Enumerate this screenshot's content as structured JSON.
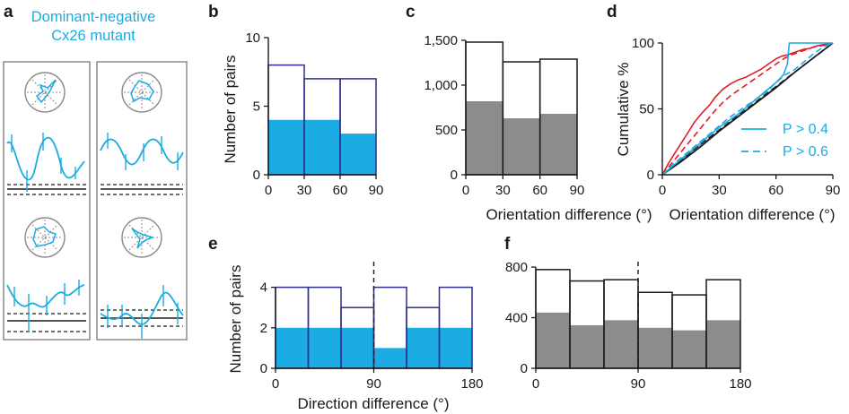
{
  "colors": {
    "cyan": "#1aace3",
    "navy": "#2e2e8f",
    "gray": "#8c8c8c",
    "red": "#e21d24",
    "black": "#1a1a1a"
  },
  "panel_a": {
    "label": "a",
    "title_line1": "Dominant-negative",
    "title_line2": "Cx26 mutant",
    "icons": [
      "polar-plot-icon",
      "tuning-curve-icon"
    ]
  },
  "chart_data": [
    {
      "id": "b",
      "panel_label": "b",
      "type": "bar",
      "xlabel": "",
      "ylabel": "Number of pairs",
      "bin_edges": [
        0,
        30,
        60,
        90
      ],
      "xticks": [
        "0",
        "30",
        "60",
        "90"
      ],
      "ylim": [
        0,
        10
      ],
      "yticks": [
        "0",
        "5",
        "10"
      ],
      "series": [
        {
          "values": [
            8,
            7,
            7
          ]
        },
        {
          "values": [
            4,
            4,
            3
          ]
        }
      ]
    },
    {
      "id": "c",
      "panel_label": "c",
      "type": "bar",
      "xlabel": "Orientation difference (°)",
      "ylabel": "",
      "bin_edges": [
        0,
        30,
        60,
        90
      ],
      "xticks": [
        "0",
        "30",
        "60",
        "90"
      ],
      "ylim": [
        0,
        1500
      ],
      "yticks": [
        "0",
        "500",
        "1,000",
        "1,500"
      ],
      "series": [
        {
          "values": [
            1480,
            1260,
            1290
          ]
        },
        {
          "values": [
            820,
            630,
            680
          ]
        }
      ]
    },
    {
      "id": "d",
      "panel_label": "d",
      "type": "line",
      "xlabel": "Orientation difference (°)",
      "ylabel": "Cumulative %",
      "xlim": [
        0,
        90
      ],
      "ylim": [
        0,
        100
      ],
      "xticks": [
        "0",
        "30",
        "60",
        "90"
      ],
      "yticks": [
        "0",
        "50",
        "100"
      ],
      "legend_position": "bottom-right",
      "legend": [
        {
          "label": "P > 0.4",
          "dash": "solid"
        },
        {
          "label": "P > 0.6",
          "dash": "dashed"
        }
      ],
      "series": [
        {
          "color": "#e21d24",
          "dash": "solid",
          "x": [
            0,
            3,
            6,
            10,
            14,
            17,
            21,
            25,
            28,
            32,
            36,
            40,
            44,
            48,
            52,
            56,
            60,
            63,
            66,
            70,
            74,
            78,
            82,
            86,
            90
          ],
          "y": [
            0,
            8,
            15,
            24,
            33,
            40,
            47,
            53,
            59,
            65,
            69,
            72,
            74,
            77,
            80,
            84,
            88,
            90,
            91,
            93,
            95,
            96,
            98,
            99,
            100
          ]
        },
        {
          "color": "#e21d24",
          "dash": "dashed",
          "x": [
            0,
            4,
            8,
            12,
            16,
            20,
            24,
            28,
            32,
            36,
            40,
            44,
            48,
            52,
            56,
            60,
            64,
            68,
            72,
            76,
            80,
            84,
            88,
            90
          ],
          "y": [
            0,
            7,
            14,
            21,
            28,
            35,
            42,
            49,
            55,
            60,
            64,
            68,
            72,
            76,
            80,
            84,
            88,
            91,
            93,
            95,
            97,
            98,
            99,
            100
          ]
        },
        {
          "color": "#1aace3",
          "dash": "solid",
          "x": [
            0,
            5,
            10,
            15,
            20,
            25,
            30,
            35,
            40,
            45,
            50,
            55,
            60,
            64,
            66,
            67,
            70,
            75,
            80,
            85,
            90
          ],
          "y": [
            0,
            6,
            12,
            18,
            24,
            30,
            36,
            41,
            46,
            52,
            58,
            64,
            70,
            76,
            84,
            100,
            100,
            100,
            100,
            100,
            100
          ]
        },
        {
          "color": "#1aace3",
          "dash": "dashed",
          "x": [
            0,
            5,
            10,
            15,
            20,
            25,
            30,
            35,
            40,
            45,
            50,
            55,
            60,
            65,
            70,
            75,
            80,
            85,
            90
          ],
          "y": [
            0,
            7,
            13,
            19,
            25,
            31,
            37,
            43,
            48,
            53,
            58,
            63,
            70,
            76,
            80,
            86,
            92,
            97,
            100
          ]
        },
        {
          "color": "#1a1a1a",
          "dash": "solid",
          "x": [
            0,
            10,
            20,
            30,
            40,
            50,
            60,
            70,
            80,
            90
          ],
          "y": [
            0,
            10,
            21,
            33,
            44,
            55,
            66,
            78,
            89,
            100
          ]
        },
        {
          "color": "#1a1a1a",
          "dash": "dashed",
          "x": [
            0,
            10,
            20,
            30,
            40,
            50,
            60,
            70,
            80,
            90
          ],
          "y": [
            0,
            11,
            23,
            34,
            45,
            56,
            67,
            78,
            89,
            100
          ]
        },
        {
          "color": "#8c8c8c",
          "dash": "solid",
          "x": [
            0,
            90
          ],
          "y": [
            0,
            100
          ]
        }
      ]
    },
    {
      "id": "e",
      "panel_label": "e",
      "type": "bar",
      "xlabel": "Direction difference (°)",
      "ylabel": "Number of pairs",
      "bin_edges": [
        0,
        30,
        60,
        90,
        120,
        150,
        180
      ],
      "xticks": [
        "0",
        "90",
        "180"
      ],
      "ylim": [
        0,
        5
      ],
      "yticks": [
        "0",
        "2",
        "4"
      ],
      "reference_line_x": 90,
      "series": [
        {
          "values": [
            4,
            4,
            3,
            4,
            3,
            4
          ]
        },
        {
          "values": [
            2,
            2,
            2,
            1,
            2,
            2
          ]
        }
      ]
    },
    {
      "id": "f",
      "panel_label": "f",
      "type": "bar",
      "xlabel": "",
      "ylabel": "",
      "bin_edges": [
        0,
        30,
        60,
        90,
        120,
        150,
        180
      ],
      "xticks": [
        "0",
        "90",
        "180"
      ],
      "ylim": [
        0,
        800
      ],
      "yticks": [
        "0",
        "400",
        "800"
      ],
      "reference_line_x": 90,
      "series": [
        {
          "values": [
            780,
            690,
            700,
            600,
            580,
            700
          ]
        },
        {
          "values": [
            440,
            340,
            380,
            320,
            300,
            380
          ]
        }
      ]
    }
  ]
}
